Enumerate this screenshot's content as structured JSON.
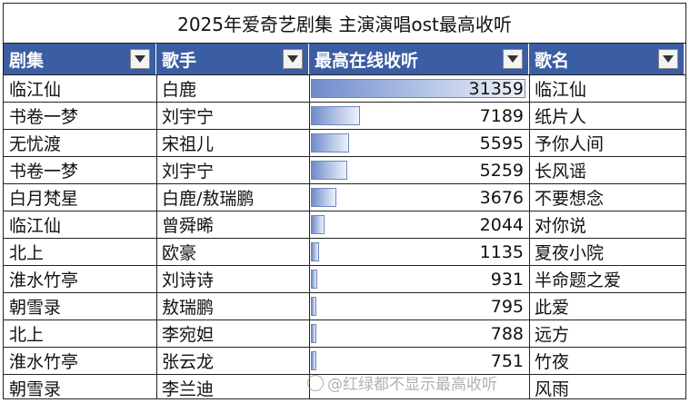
{
  "chart_data": {
    "type": "table",
    "title": "2025年爱奇艺剧集 主演演唱ost最高收听",
    "columns": [
      "剧集",
      "歌手",
      "最高在线收听",
      "歌名"
    ],
    "rows": [
      {
        "drama": "临江仙",
        "singer": "白鹿",
        "listens": "31359",
        "song": "临江仙"
      },
      {
        "drama": "书卷一梦",
        "singer": "刘宇宁",
        "listens": "7189",
        "song": "纸片人"
      },
      {
        "drama": "无忧渡",
        "singer": "宋祖儿",
        "listens": "5595",
        "song": "予你人间"
      },
      {
        "drama": "书卷一梦",
        "singer": "刘宇宁",
        "listens": "5259",
        "song": "长风谣"
      },
      {
        "drama": "白月梵星",
        "singer": "白鹿/敖瑞鹏",
        "listens": "3676",
        "song": "不要想念"
      },
      {
        "drama": "临江仙",
        "singer": "曾舜晞",
        "listens": "2044",
        "song": "对你说"
      },
      {
        "drama": "北上",
        "singer": "欧豪",
        "listens": "1135",
        "song": "夏夜小院"
      },
      {
        "drama": "淮水竹亭",
        "singer": "刘诗诗",
        "listens": "931",
        "song": "半命题之爱"
      },
      {
        "drama": "朝雪录",
        "singer": "敖瑞鹏",
        "listens": "795",
        "song": "此爱"
      },
      {
        "drama": "北上",
        "singer": "李宛妲",
        "listens": "788",
        "song": "远方"
      },
      {
        "drama": "淮水竹亭",
        "singer": "张云龙",
        "listens": "751",
        "song": "竹夜"
      },
      {
        "drama": "朝雪录",
        "singer": "李兰迪",
        "listens": "",
        "song": "风雨"
      }
    ],
    "bar_max": 31359
  },
  "colors": {
    "header_bg": "#3a5da3",
    "bar": "#6f8ccb"
  },
  "watermark": "@红绿都不显示最高收听"
}
